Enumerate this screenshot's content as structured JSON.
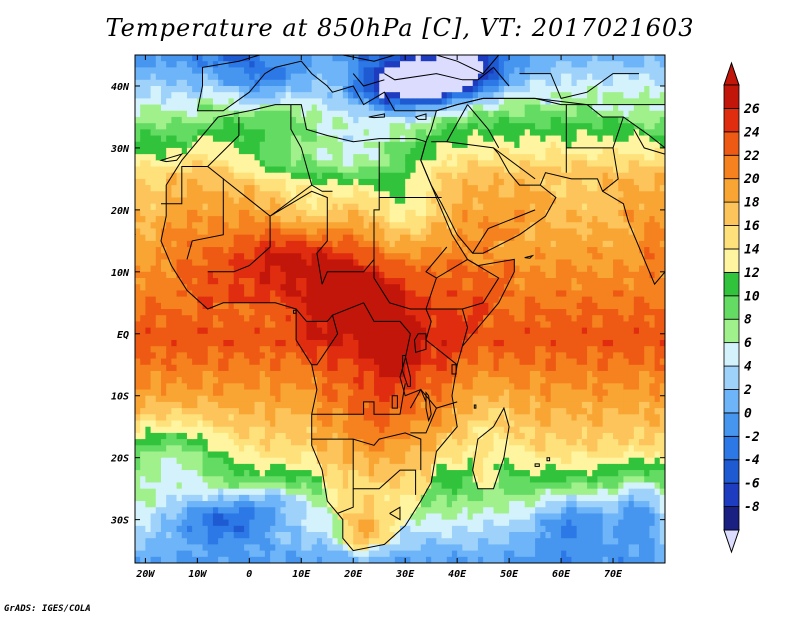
{
  "title": "Temperature at 850hPa [C], VT: 2017021603",
  "credit": "GrADS: IGES/COLA",
  "map": {
    "lon_range": [
      -22,
      80
    ],
    "lat_range": [
      -37,
      45
    ],
    "lon_ticks": [
      {
        "value": -20,
        "label": "20W"
      },
      {
        "value": -10,
        "label": "10W"
      },
      {
        "value": 0,
        "label": "0"
      },
      {
        "value": 10,
        "label": "10E"
      },
      {
        "value": 20,
        "label": "20E"
      },
      {
        "value": 30,
        "label": "30E"
      },
      {
        "value": 40,
        "label": "40E"
      },
      {
        "value": 50,
        "label": "50E"
      },
      {
        "value": 60,
        "label": "60E"
      },
      {
        "value": 70,
        "label": "70E"
      }
    ],
    "lat_ticks": [
      {
        "value": 40,
        "label": "40N"
      },
      {
        "value": 30,
        "label": "30N"
      },
      {
        "value": 20,
        "label": "20N"
      },
      {
        "value": 10,
        "label": "10N"
      },
      {
        "value": 0,
        "label": "EQ"
      },
      {
        "value": -10,
        "label": "10S"
      },
      {
        "value": -20,
        "label": "20S"
      },
      {
        "value": -30,
        "label": "30S"
      }
    ]
  },
  "colorbar": {
    "levels": [
      "-8",
      "-6",
      "-4",
      "-2",
      "0",
      "2",
      "4",
      "6",
      "8",
      "10",
      "12",
      "14",
      "16",
      "18",
      "20",
      "22",
      "24",
      "26"
    ],
    "colors": [
      "#1a1f82",
      "#1e3cc0",
      "#1e5ad2",
      "#2c78e6",
      "#4696f0",
      "#6eb4f8",
      "#9ed2fa",
      "#d4f2fc",
      "#a0f08c",
      "#64dc64",
      "#32c33c",
      "#fff5a0",
      "#fee17a",
      "#fcc45a",
      "#f9a534",
      "#f5821e",
      "#ee5a14",
      "#e02d10",
      "#c3160a"
    ],
    "under_color": "#dcdcff"
  },
  "field": {
    "type": "filled-contour",
    "variable": "temperature_850hPa",
    "unit": "C",
    "blobs": [
      {
        "lon": 30,
        "lat": 40,
        "sx": 10,
        "sy": 4,
        "amp": -16
      },
      {
        "lon": 40,
        "lat": 42,
        "sx": 10,
        "sy": 4,
        "amp": -12
      },
      {
        "lon": 0,
        "lat": 42,
        "sx": 8,
        "sy": 4,
        "amp": -6
      },
      {
        "lon": 20,
        "lat": 28,
        "sx": 12,
        "sy": 5,
        "amp": -9
      },
      {
        "lon": 5,
        "lat": 28,
        "sx": 8,
        "sy": 4,
        "amp": -4
      },
      {
        "lon": 30,
        "lat": 20,
        "sx": 7,
        "sy": 6,
        "amp": -6
      },
      {
        "lon": 12,
        "lat": 20,
        "sx": 7,
        "sy": 4,
        "amp": -4
      },
      {
        "lon": 8,
        "lat": 12,
        "sx": 12,
        "sy": 5,
        "amp": 5
      },
      {
        "lon": 20,
        "lat": 6,
        "sx": 8,
        "sy": 5,
        "amp": 7
      },
      {
        "lon": 28,
        "lat": -2,
        "sx": 4,
        "sy": 6,
        "amp": 6
      },
      {
        "lon": 25,
        "lat": -15,
        "sx": 6,
        "sy": 8,
        "amp": 3
      },
      {
        "lon": 22,
        "lat": -32,
        "sx": 5,
        "sy": 4,
        "amp": 7
      },
      {
        "lon": -15,
        "lat": -20,
        "sx": 10,
        "sy": 6,
        "amp": -8
      },
      {
        "lon": -5,
        "lat": -30,
        "sx": 10,
        "sy": 4,
        "amp": -9
      },
      {
        "lon": 5,
        "lat": -27,
        "sx": 7,
        "sy": 3,
        "amp": -5
      },
      {
        "lon": 62,
        "lat": -30,
        "sx": 8,
        "sy": 5,
        "amp": -7
      },
      {
        "lon": 75,
        "lat": -28,
        "sx": 5,
        "sy": 6,
        "amp": -7
      },
      {
        "lon": 47,
        "lat": -18,
        "sx": 4,
        "sy": 8,
        "amp": -4
      }
    ]
  }
}
